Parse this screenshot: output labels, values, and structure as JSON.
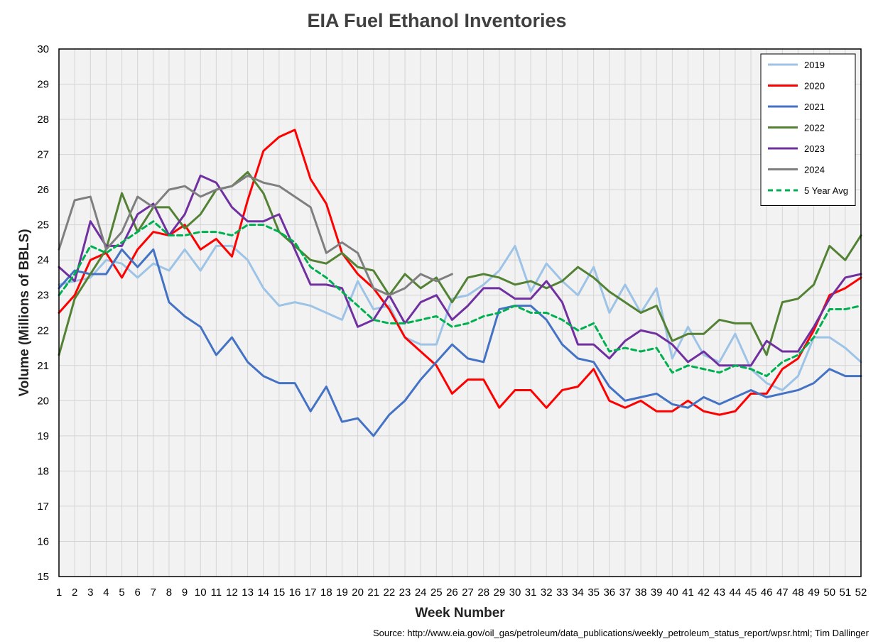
{
  "chart_data": {
    "type": "line",
    "title": "EIA Fuel Ethanol Inventories",
    "xlabel": "Week Number",
    "ylabel": "Volume (Millions of BBLS)",
    "source": "Source: http://www.eia.gov/oil_gas/petroleum/data_publications/weekly_petroleum_status_report/wpsr.html; Tim Dallinger",
    "xlim": [
      1,
      52
    ],
    "ylim": [
      15,
      30
    ],
    "y_ticks": [
      15,
      16,
      17,
      18,
      19,
      20,
      21,
      22,
      23,
      24,
      25,
      26,
      27,
      28,
      29,
      30
    ],
    "x_ticks": [
      1,
      2,
      3,
      4,
      5,
      6,
      7,
      8,
      9,
      10,
      11,
      12,
      13,
      14,
      15,
      16,
      17,
      18,
      19,
      20,
      21,
      22,
      23,
      24,
      25,
      26,
      27,
      28,
      29,
      30,
      31,
      32,
      33,
      34,
      35,
      36,
      37,
      38,
      39,
      40,
      41,
      42,
      43,
      44,
      45,
      46,
      47,
      48,
      49,
      50,
      51,
      52
    ],
    "grid": true,
    "background": "#f2f2f2",
    "legend_position": "top-right",
    "series": [
      {
        "name": "2019",
        "color": "#9dc3e6",
        "dash": false,
        "values": [
          23.3,
          23.4,
          23.5,
          24.0,
          23.9,
          23.5,
          23.9,
          23.7,
          24.3,
          23.7,
          24.4,
          24.4,
          24.0,
          23.2,
          22.7,
          22.8,
          22.7,
          22.5,
          22.3,
          23.4,
          22.6,
          22.7,
          21.8,
          21.6,
          21.6,
          22.9,
          23.0,
          23.3,
          23.7,
          24.4,
          23.1,
          23.9,
          23.4,
          23.0,
          23.8,
          22.5,
          23.3,
          22.5,
          23.2,
          21.2,
          22.1,
          21.3,
          21.1,
          21.9,
          20.9,
          20.5,
          20.3,
          20.7,
          21.8,
          21.8,
          21.5,
          21.1
        ]
      },
      {
        "name": "2020",
        "color": "#ff0000",
        "dash": false,
        "values": [
          22.5,
          23.0,
          24.0,
          24.2,
          23.5,
          24.3,
          24.8,
          24.7,
          25.0,
          24.3,
          24.6,
          24.1,
          25.7,
          27.1,
          27.5,
          27.7,
          26.3,
          25.6,
          24.2,
          23.6,
          23.2,
          22.6,
          21.8,
          21.4,
          21.0,
          20.2,
          20.6,
          20.6,
          19.8,
          20.3,
          20.3,
          19.8,
          20.3,
          20.4,
          20.9,
          20.0,
          19.8,
          20.0,
          19.7,
          19.7,
          20.0,
          19.7,
          19.6,
          19.7,
          20.2,
          20.2,
          20.9,
          21.2,
          22.0,
          23.0,
          23.2,
          23.5
        ]
      },
      {
        "name": "2021",
        "color": "#4472c4",
        "dash": false,
        "values": [
          23.2,
          23.7,
          23.6,
          23.6,
          24.3,
          23.8,
          24.3,
          22.8,
          22.4,
          22.1,
          21.3,
          21.8,
          21.1,
          20.7,
          20.5,
          20.5,
          19.7,
          20.4,
          19.4,
          19.5,
          19.0,
          19.6,
          20.0,
          20.6,
          21.1,
          21.6,
          21.2,
          21.1,
          22.6,
          22.7,
          22.7,
          22.3,
          21.6,
          21.2,
          21.1,
          20.4,
          20.0,
          20.1,
          20.2,
          19.9,
          19.8,
          20.1,
          19.9,
          20.1,
          20.3,
          20.1,
          20.2,
          20.3,
          20.5,
          20.9,
          20.7,
          20.7
        ]
      },
      {
        "name": "2022",
        "color": "#548235",
        "dash": false,
        "values": [
          21.3,
          22.9,
          23.6,
          24.3,
          25.9,
          24.8,
          25.5,
          25.5,
          24.9,
          25.3,
          26.0,
          26.1,
          26.5,
          25.9,
          24.8,
          24.4,
          24.0,
          23.9,
          24.2,
          23.8,
          23.7,
          23.0,
          23.6,
          23.2,
          23.5,
          22.8,
          23.5,
          23.6,
          23.5,
          23.3,
          23.4,
          23.2,
          23.4,
          23.8,
          23.5,
          23.1,
          22.8,
          22.5,
          22.7,
          21.7,
          21.9,
          21.9,
          22.3,
          22.2,
          22.2,
          21.3,
          22.8,
          22.9,
          23.3,
          24.4,
          24.0,
          24.7
        ]
      },
      {
        "name": "2023",
        "color": "#7030a0",
        "dash": false,
        "values": [
          23.8,
          23.4,
          25.1,
          24.4,
          24.4,
          25.3,
          25.6,
          24.7,
          25.3,
          26.4,
          26.2,
          25.5,
          25.1,
          25.1,
          25.3,
          24.3,
          23.3,
          23.3,
          23.2,
          22.1,
          22.3,
          23.0,
          22.2,
          22.8,
          23.0,
          22.3,
          22.7,
          23.2,
          23.2,
          22.9,
          22.9,
          23.4,
          22.8,
          21.6,
          21.6,
          21.2,
          21.7,
          22.0,
          21.9,
          21.6,
          21.1,
          21.4,
          21.0,
          21.0,
          21.0,
          21.7,
          21.4,
          21.4,
          22.1,
          22.9,
          23.5,
          23.6
        ]
      },
      {
        "name": "2024",
        "color": "#7f7f7f",
        "dash": false,
        "values": [
          24.3,
          25.7,
          25.8,
          24.3,
          24.8,
          25.8,
          25.5,
          26.0,
          26.1,
          25.8,
          26.0,
          26.1,
          26.4,
          26.2,
          26.1,
          25.8,
          25.5,
          24.2,
          24.5,
          24.2,
          23.2,
          23.0,
          23.2,
          23.6,
          23.4,
          23.6
        ]
      },
      {
        "name": "5 Year Avg",
        "color": "#00b050",
        "dash": true,
        "values": [
          23.0,
          23.6,
          24.4,
          24.2,
          24.5,
          24.8,
          25.1,
          24.7,
          24.7,
          24.8,
          24.8,
          24.7,
          25.0,
          25.0,
          24.8,
          24.5,
          23.8,
          23.5,
          23.1,
          22.7,
          22.3,
          22.2,
          22.2,
          22.3,
          22.4,
          22.1,
          22.2,
          22.4,
          22.5,
          22.7,
          22.5,
          22.5,
          22.3,
          22.0,
          22.2,
          21.4,
          21.5,
          21.4,
          21.5,
          20.8,
          21.0,
          20.9,
          20.8,
          21.0,
          20.9,
          20.7,
          21.1,
          21.3,
          21.8,
          22.6,
          22.6,
          22.7
        ]
      }
    ]
  }
}
